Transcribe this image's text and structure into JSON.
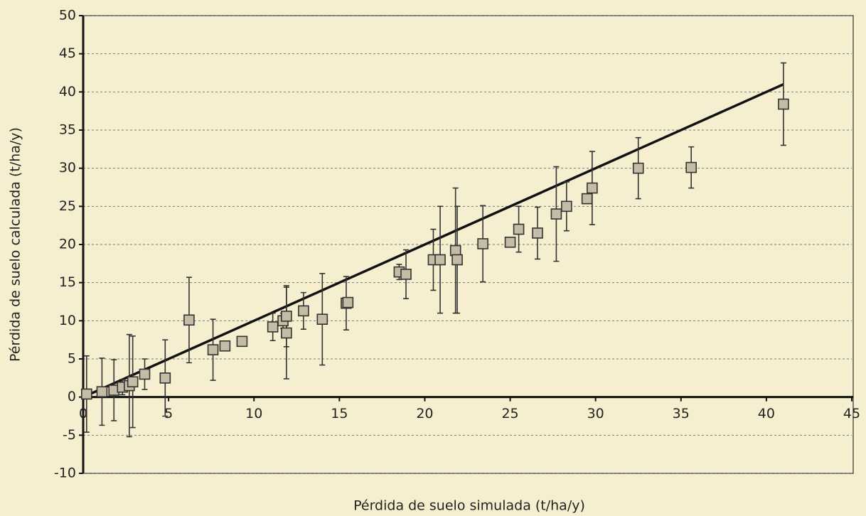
{
  "chart_data": {
    "type": "scatter",
    "xlabel": "Pérdida de suelo simulada (t/ha/y)",
    "ylabel": "Pérdida de suelo calculada (t/ha/y)",
    "xlim": [
      0,
      45
    ],
    "xticks": [
      0,
      5,
      10,
      15,
      20,
      25,
      30,
      35,
      40,
      45
    ],
    "ylim": [
      -10,
      50
    ],
    "yticks": [
      -10,
      -5,
      0,
      5,
      10,
      15,
      20,
      25,
      30,
      35,
      40,
      45,
      50
    ],
    "grid": true,
    "color": "#c4bca4",
    "x": [
      0.2,
      1.1,
      1.8,
      2.3,
      2.7,
      2.9,
      3.6,
      4.8,
      6.2,
      7.6,
      8.3,
      9.3,
      11.1,
      11.7,
      11.9,
      11.9,
      12.9,
      14.0,
      15.4,
      15.5,
      18.5,
      18.9,
      20.5,
      20.9,
      21.8,
      21.9,
      23.4,
      25.0,
      25.5,
      26.6,
      27.7,
      28.3,
      29.5,
      29.8,
      32.5,
      35.6,
      41.0
    ],
    "values": [
      0.4,
      0.7,
      0.9,
      1.3,
      1.5,
      2.0,
      3.0,
      2.5,
      10.1,
      6.2,
      6.7,
      7.3,
      9.2,
      10.0,
      10.6,
      8.4,
      11.3,
      10.2,
      12.3,
      12.4,
      16.4,
      16.1,
      18.0,
      18.0,
      19.2,
      18.0,
      20.1,
      20.3,
      22.0,
      21.5,
      24.0,
      25.0,
      26.0,
      27.4,
      30.0,
      30.1,
      38.4
    ],
    "errors": [
      5.0,
      4.4,
      4.0,
      1.0,
      6.7,
      6.0,
      2.0,
      5.0,
      5.6,
      4.0,
      0.5,
      0.5,
      1.8,
      1.0,
      4.0,
      6.0,
      2.4,
      6.0,
      3.5,
      0.5,
      1.0,
      3.2,
      4.0,
      7.0,
      8.2,
      7.0,
      5.0,
      0.5,
      3.0,
      3.4,
      6.2,
      3.2,
      0.5,
      4.8,
      4.0,
      2.7,
      5.4
    ],
    "fit_line": {
      "x": [
        0,
        41
      ],
      "values": [
        0,
        41
      ],
      "color": "#111111"
    }
  }
}
